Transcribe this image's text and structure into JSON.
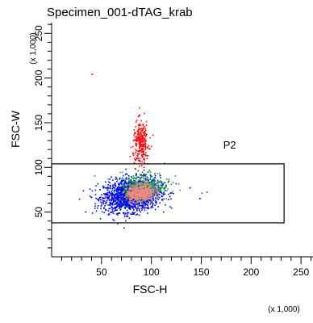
{
  "chart_data": {
    "type": "scatter",
    "title": "Specimen_001-dTAG_krab",
    "xlabel": "FSC-H",
    "ylabel": "FSC-W",
    "x_multiplier": "(x 1,000)",
    "y_multiplier": "(x 1,000)",
    "xlim": [
      0,
      262
    ],
    "ylim": [
      0,
      262
    ],
    "x_ticks": [
      50,
      100,
      150,
      200,
      250
    ],
    "y_ticks": [
      50,
      100,
      150,
      200,
      250
    ],
    "x_tick_labels": [
      "50",
      "100",
      "150",
      "200",
      "250"
    ],
    "y_tick_labels": [
      "50",
      "100",
      "150",
      "200",
      "250"
    ],
    "grid": false,
    "gate": {
      "name": "P2",
      "x_range": [
        0,
        233
      ],
      "y_range": [
        38,
        104
      ]
    },
    "populations": [
      {
        "color": "#0000ff",
        "center": [
          80,
          70
        ],
        "spread": [
          14,
          9
        ],
        "count": 1800
      },
      {
        "color": "#00aa00",
        "center": [
          90,
          78
        ],
        "spread": [
          14,
          9
        ],
        "count": 260
      },
      {
        "color": "#33aa55",
        "center": [
          88,
          76
        ],
        "spread": [
          10,
          6
        ],
        "count": 220
      },
      {
        "color": "#f08a80",
        "center": [
          88,
          72
        ],
        "spread": [
          7,
          5
        ],
        "count": 500
      },
      {
        "color": "#ff0000",
        "center": [
          89,
          128
        ],
        "spread": [
          4,
          12
        ],
        "count": 260
      }
    ],
    "outliers": [
      {
        "x": 40,
        "y": 205,
        "color": "#ff0000"
      },
      {
        "x": 138,
        "y": 78,
        "color": "#0000ff"
      },
      {
        "x": 148,
        "y": 66,
        "color": "#0000ff"
      },
      {
        "x": 150,
        "y": 72,
        "color": "#00aa00"
      },
      {
        "x": 155,
        "y": 73,
        "color": "#00aa00"
      }
    ]
  }
}
